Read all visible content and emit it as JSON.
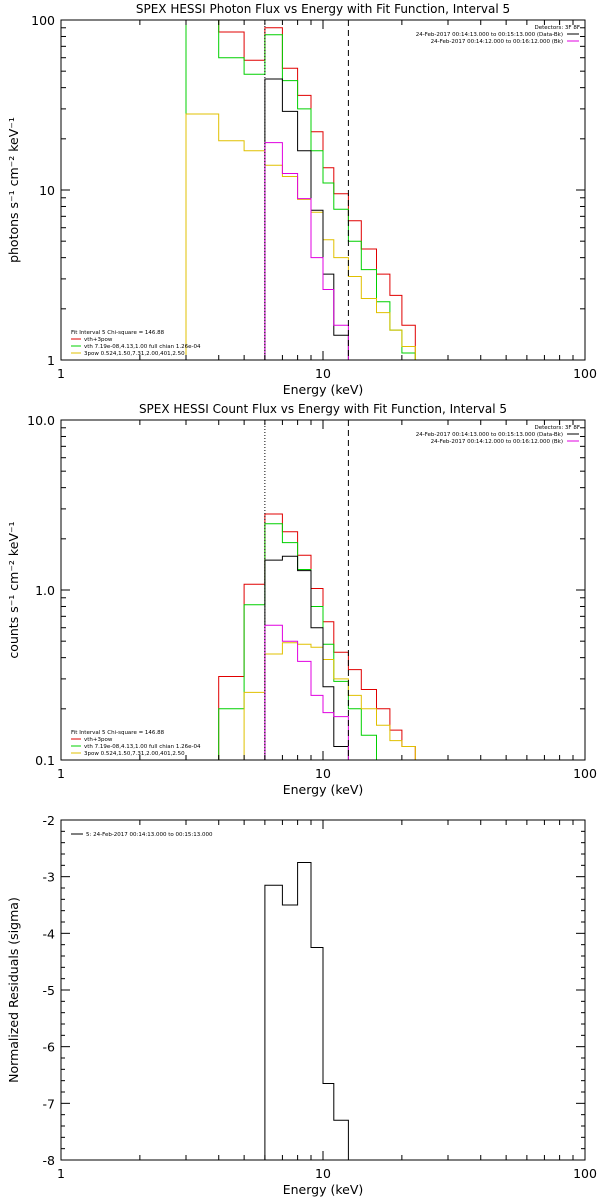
{
  "chart_data": [
    {
      "type": "line",
      "title": "SPEX HESSI Photon Flux vs Energy with Fit Function, Interval 5",
      "xlabel": "Energy (keV)",
      "ylabel": "photons s⁻¹ cm⁻² keV⁻¹",
      "xscale": "log",
      "yscale": "log",
      "xlim": [
        1,
        100
      ],
      "ylim": [
        1,
        100
      ],
      "x_ticks": [
        "1",
        "10",
        "100"
      ],
      "y_ticks": [
        "1",
        "10",
        "100"
      ],
      "vlines": [
        {
          "x": 6.0,
          "style": "dotted"
        },
        {
          "x": 12.5,
          "style": "dashed"
        }
      ],
      "legend_header": "Detectors: 3F 8F",
      "legend_items": [
        {
          "text": "24-Feb-2017 00:14:13.000 to 00:15:13.000 (Data-Bk)",
          "color": "#000000"
        },
        {
          "text": "24-Feb-2017 00:14:12.000 to 00:16:12.000 (Bk)",
          "color": "#e000e0"
        }
      ],
      "fit_title": "Fit Interval 5   Chi-square = 146.88",
      "fit_items": [
        {
          "text": "vth+3pow",
          "color": "#e00000"
        },
        {
          "text": "vth 7.19e-08,4.13,1.00  full chian 1.26e-04",
          "color": "#00d000"
        },
        {
          "text": "3pow 0.524,1.50,7.31,2.00,401,2.50",
          "color": "#e0c000"
        }
      ],
      "series": [
        {
          "color": "#e00000",
          "edges": [
            3,
            4,
            5,
            6,
            7,
            8,
            9,
            10,
            11,
            12.5,
            14,
            16,
            18,
            20,
            22.5
          ],
          "values": [
            100,
            85,
            58,
            90,
            52,
            36,
            22,
            13.5,
            9.5,
            6.6,
            4.5,
            3.2,
            2.4,
            1.6
          ]
        },
        {
          "color": "#00d000",
          "edges": [
            3,
            4,
            5,
            6,
            7,
            8,
            9,
            10,
            11,
            12.5,
            14,
            16,
            18,
            20,
            22.5
          ],
          "values": [
            100,
            60,
            48,
            82,
            44,
            30,
            17,
            11,
            7.7,
            5,
            3.4,
            2.2,
            1.5,
            1.1
          ]
        },
        {
          "color": "#e0c000",
          "edges": [
            3,
            4,
            5,
            6,
            7,
            8,
            9,
            10,
            11,
            12.5,
            14,
            16,
            18,
            20,
            22.5
          ],
          "values": [
            28,
            19.5,
            17,
            14,
            12,
            8.8,
            7.4,
            5.1,
            4,
            3.1,
            2.3,
            1.9,
            1.5,
            1.2
          ]
        },
        {
          "color": "#000000",
          "edges": [
            6,
            7,
            8,
            9,
            10,
            11,
            12.5
          ],
          "values": [
            45,
            29,
            17,
            7.6,
            3.2,
            1.4
          ]
        },
        {
          "color": "#e000e0",
          "edges": [
            6,
            7,
            8,
            9,
            10,
            11,
            12.5
          ],
          "values": [
            19,
            12.5,
            8.9,
            4,
            2.6,
            1.6
          ]
        }
      ]
    },
    {
      "type": "line",
      "title": "SPEX HESSI Count Flux vs Energy with Fit Function, Interval 5",
      "xlabel": "Energy (keV)",
      "ylabel": "counts s⁻¹ cm⁻² keV⁻¹",
      "xscale": "log",
      "yscale": "log",
      "xlim": [
        1,
        100
      ],
      "ylim": [
        0.1,
        10
      ],
      "x_ticks": [
        "1",
        "10",
        "100"
      ],
      "y_ticks": [
        "0.1",
        "1.0",
        "10.0"
      ],
      "vlines": [
        {
          "x": 6.0,
          "style": "dotted"
        },
        {
          "x": 12.5,
          "style": "dashed"
        }
      ],
      "legend_header": "Detectors: 3F 8F",
      "legend_items": [
        {
          "text": "24-Feb-2017 00:14:13.000 to 00:15:13.000 (Data-Bk)",
          "color": "#000000"
        },
        {
          "text": "24-Feb-2017 00:14:12.000 to 00:16:12.000 (Bk)",
          "color": "#e000e0"
        }
      ],
      "fit_title": "Fit Interval 5   Chi-square = 146.88",
      "fit_items": [
        {
          "text": "vth+3pow",
          "color": "#e00000"
        },
        {
          "text": "vth 7.19e-08,4.13,1.00  full chian 1.26e-04",
          "color": "#00d000"
        },
        {
          "text": "3pow 0.524,1.50,7.31,2.00,401,2.50",
          "color": "#e0c000"
        }
      ],
      "series": [
        {
          "color": "#e00000",
          "edges": [
            4,
            5,
            6,
            7,
            8,
            9,
            10,
            11,
            12.5,
            14,
            16,
            18,
            20,
            22.5
          ],
          "values": [
            0.31,
            1.08,
            2.8,
            2.2,
            1.6,
            1.02,
            0.65,
            0.43,
            0.34,
            0.26,
            0.2,
            0.15,
            0.12
          ]
        },
        {
          "color": "#00d000",
          "edges": [
            4,
            5,
            6,
            7,
            8,
            9,
            10,
            11,
            12.5,
            14,
            16
          ],
          "values": [
            0.2,
            0.82,
            2.45,
            1.9,
            1.32,
            0.8,
            0.48,
            0.29,
            0.2,
            0.14
          ]
        },
        {
          "color": "#e0c000",
          "edges": [
            3,
            4,
            5,
            6,
            7,
            8,
            9,
            10,
            11,
            12.5,
            14,
            16,
            18,
            20,
            22.5,
            25
          ],
          "values": [
            0.1,
            0.1,
            0.25,
            0.42,
            0.49,
            0.48,
            0.46,
            0.39,
            0.3,
            0.24,
            0.2,
            0.16,
            0.13,
            0.12,
            0.1
          ]
        },
        {
          "color": "#000000",
          "edges": [
            6,
            7,
            8,
            9,
            10,
            11,
            12.5
          ],
          "values": [
            1.5,
            1.58,
            1.3,
            0.6,
            0.27,
            0.12
          ]
        },
        {
          "color": "#e000e0",
          "edges": [
            6,
            7,
            8,
            9,
            10,
            11,
            12.5
          ],
          "values": [
            0.62,
            0.5,
            0.38,
            0.24,
            0.19,
            0.18
          ]
        }
      ]
    },
    {
      "type": "line",
      "title": "",
      "xlabel": "Energy (keV)",
      "ylabel": "Normalized Residuals (sigma)",
      "xscale": "log",
      "yscale": "linear",
      "xlim": [
        1,
        100
      ],
      "ylim": [
        -8,
        -2
      ],
      "x_ticks": [
        "1",
        "10",
        "100"
      ],
      "y_ticks": [
        "-8",
        "-7",
        "-6",
        "-5",
        "-4",
        "-3",
        "-2"
      ],
      "vlines": [],
      "legend_items": [
        {
          "text": "5: 24-Feb-2017 00:14:13.000 to 00:15:13.000",
          "color": "#000000"
        }
      ],
      "series": [
        {
          "color": "#000000",
          "edges": [
            6,
            7,
            8,
            9,
            10,
            11,
            12.5
          ],
          "values": [
            -3.15,
            -3.5,
            -2.75,
            -4.25,
            -6.65,
            -7.3
          ]
        }
      ]
    }
  ]
}
